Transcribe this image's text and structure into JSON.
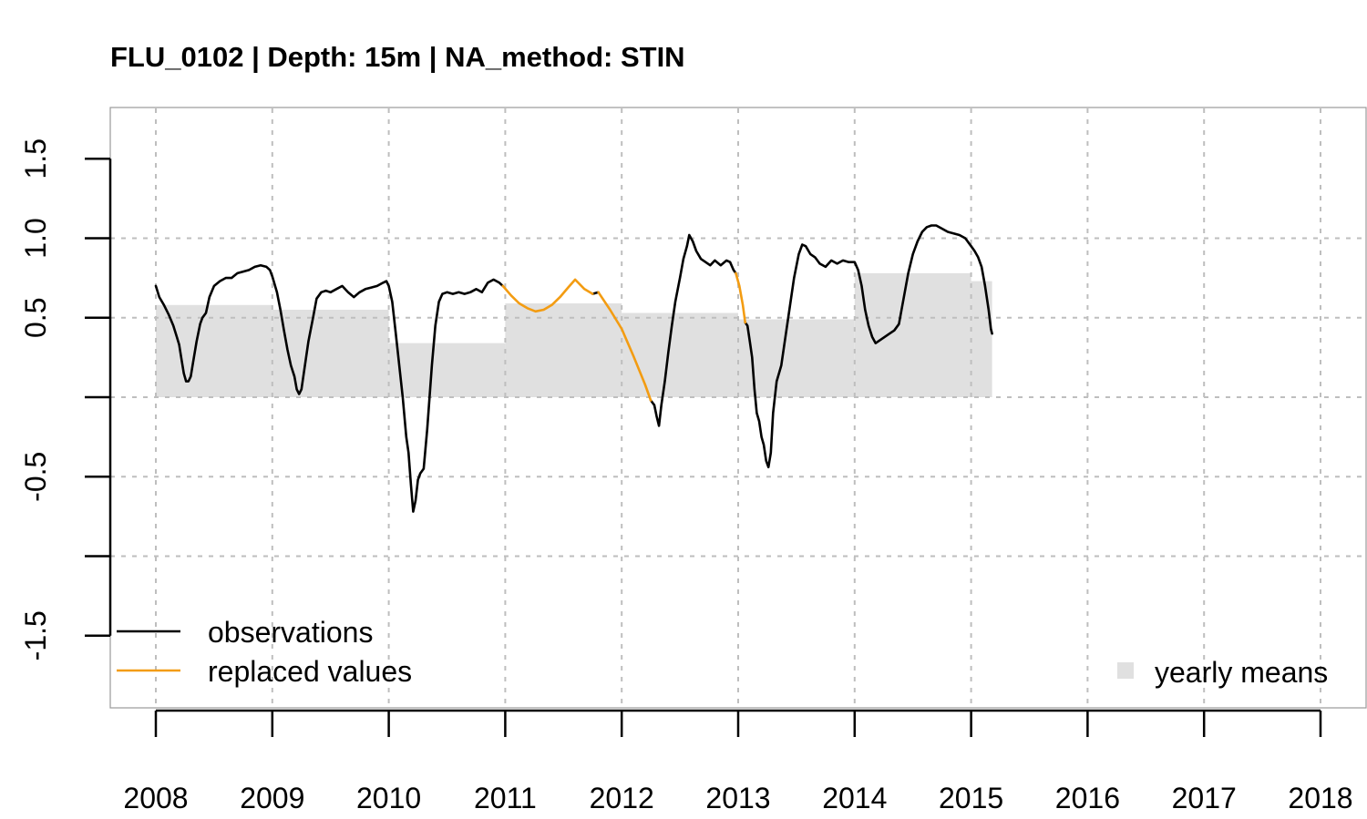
{
  "chart_data": {
    "type": "line",
    "title": "FLU_0102 | Depth: 15m | NA_method: STIN",
    "xlabel": "",
    "ylabel": "",
    "xlim": [
      2008,
      2018
    ],
    "ylim": [
      -1.8,
      1.8
    ],
    "x_ticks": [
      "2008",
      "2009",
      "2010",
      "2011",
      "2012",
      "2013",
      "2014",
      "2015",
      "2016",
      "2017",
      "2018"
    ],
    "y_ticks": [
      "-1.5",
      "-0.5",
      "0.5",
      "1.0",
      "1.5"
    ],
    "grid": true,
    "colors": {
      "observations": "#000000",
      "replaced": "#F39C12",
      "yearly_means": "#E0E0E0",
      "grid": "#BEBEBE"
    },
    "legend": {
      "position_lines": "bottom-left",
      "position_bars": "bottom-right",
      "entries": [
        {
          "label": "observations",
          "color": "#000000",
          "kind": "line"
        },
        {
          "label": "replaced values",
          "color": "#F39C12",
          "kind": "line"
        },
        {
          "label": "yearly means",
          "color": "#E0E0E0",
          "kind": "box"
        }
      ]
    },
    "yearly_means": [
      {
        "start": 2008.0,
        "end": 2009.0,
        "value": 0.58
      },
      {
        "start": 2009.0,
        "end": 2010.0,
        "value": 0.55
      },
      {
        "start": 2010.0,
        "end": 2011.0,
        "value": 0.34
      },
      {
        "start": 2011.0,
        "end": 2012.0,
        "value": 0.59
      },
      {
        "start": 2012.0,
        "end": 2013.0,
        "value": 0.53
      },
      {
        "start": 2013.0,
        "end": 2014.0,
        "value": 0.49
      },
      {
        "start": 2014.0,
        "end": 2015.0,
        "value": 0.78
      },
      {
        "start": 2015.0,
        "end": 2015.18,
        "value": 0.73
      }
    ],
    "series": [
      {
        "name": "observations",
        "segments": [
          [
            [
              2008.0,
              0.7
            ],
            [
              2008.03,
              0.63
            ],
            [
              2008.07,
              0.58
            ],
            [
              2008.11,
              0.52
            ],
            [
              2008.15,
              0.45
            ],
            [
              2008.18,
              0.38
            ],
            [
              2008.2,
              0.33
            ],
            [
              2008.22,
              0.24
            ],
            [
              2008.24,
              0.15
            ],
            [
              2008.26,
              0.1
            ],
            [
              2008.28,
              0.1
            ],
            [
              2008.3,
              0.13
            ],
            [
              2008.32,
              0.22
            ],
            [
              2008.35,
              0.35
            ],
            [
              2008.38,
              0.46
            ],
            [
              2008.4,
              0.5
            ],
            [
              2008.43,
              0.53
            ],
            [
              2008.46,
              0.63
            ],
            [
              2008.5,
              0.7
            ],
            [
              2008.55,
              0.73
            ],
            [
              2008.6,
              0.75
            ],
            [
              2008.65,
              0.75
            ],
            [
              2008.7,
              0.78
            ],
            [
              2008.75,
              0.79
            ],
            [
              2008.8,
              0.8
            ],
            [
              2008.85,
              0.82
            ],
            [
              2008.9,
              0.83
            ],
            [
              2008.95,
              0.82
            ],
            [
              2008.98,
              0.8
            ],
            [
              2009.0,
              0.76
            ],
            [
              2009.04,
              0.66
            ],
            [
              2009.07,
              0.55
            ],
            [
              2009.1,
              0.42
            ],
            [
              2009.13,
              0.3
            ],
            [
              2009.16,
              0.2
            ],
            [
              2009.19,
              0.13
            ],
            [
              2009.21,
              0.05
            ],
            [
              2009.23,
              0.02
            ],
            [
              2009.25,
              0.05
            ],
            [
              2009.28,
              0.2
            ],
            [
              2009.31,
              0.35
            ],
            [
              2009.35,
              0.5
            ],
            [
              2009.38,
              0.62
            ],
            [
              2009.42,
              0.66
            ],
            [
              2009.46,
              0.67
            ],
            [
              2009.5,
              0.66
            ],
            [
              2009.55,
              0.68
            ],
            [
              2009.6,
              0.7
            ],
            [
              2009.65,
              0.66
            ],
            [
              2009.7,
              0.63
            ],
            [
              2009.75,
              0.66
            ],
            [
              2009.8,
              0.68
            ],
            [
              2009.85,
              0.69
            ],
            [
              2009.9,
              0.7
            ],
            [
              2009.95,
              0.72
            ],
            [
              2009.98,
              0.73
            ],
            [
              2010.0,
              0.7
            ],
            [
              2010.03,
              0.6
            ],
            [
              2010.06,
              0.4
            ],
            [
              2010.09,
              0.2
            ],
            [
              2010.12,
              0.0
            ],
            [
              2010.15,
              -0.25
            ],
            [
              2010.17,
              -0.35
            ],
            [
              2010.19,
              -0.55
            ],
            [
              2010.21,
              -0.72
            ],
            [
              2010.23,
              -0.65
            ],
            [
              2010.25,
              -0.52
            ],
            [
              2010.27,
              -0.48
            ],
            [
              2010.3,
              -0.45
            ],
            [
              2010.33,
              -0.2
            ],
            [
              2010.37,
              0.2
            ],
            [
              2010.4,
              0.45
            ],
            [
              2010.43,
              0.6
            ],
            [
              2010.46,
              0.65
            ],
            [
              2010.5,
              0.66
            ],
            [
              2010.55,
              0.65
            ],
            [
              2010.6,
              0.66
            ],
            [
              2010.65,
              0.65
            ],
            [
              2010.7,
              0.66
            ],
            [
              2010.75,
              0.68
            ],
            [
              2010.8,
              0.66
            ],
            [
              2010.85,
              0.72
            ],
            [
              2010.9,
              0.74
            ],
            [
              2010.95,
              0.72
            ],
            [
              2010.98,
              0.7
            ]
          ],
          [
            [
              2011.75,
              0.65
            ],
            [
              2011.8,
              0.66
            ]
          ],
          [
            [
              2012.25,
              -0.02
            ],
            [
              2012.28,
              -0.05
            ],
            [
              2012.3,
              -0.12
            ],
            [
              2012.32,
              -0.18
            ],
            [
              2012.34,
              -0.05
            ],
            [
              2012.37,
              0.1
            ],
            [
              2012.4,
              0.28
            ],
            [
              2012.43,
              0.45
            ],
            [
              2012.46,
              0.6
            ],
            [
              2012.5,
              0.75
            ],
            [
              2012.53,
              0.87
            ],
            [
              2012.56,
              0.95
            ],
            [
              2012.58,
              1.02
            ],
            [
              2012.61,
              0.98
            ],
            [
              2012.64,
              0.92
            ],
            [
              2012.68,
              0.87
            ],
            [
              2012.72,
              0.85
            ],
            [
              2012.76,
              0.83
            ],
            [
              2012.8,
              0.86
            ],
            [
              2012.85,
              0.83
            ],
            [
              2012.9,
              0.86
            ],
            [
              2012.93,
              0.85
            ],
            [
              2012.96,
              0.8
            ],
            [
              2012.98,
              0.78
            ]
          ],
          [
            [
              2013.06,
              0.47
            ],
            [
              2013.08,
              0.45
            ],
            [
              2013.1,
              0.35
            ],
            [
              2013.12,
              0.25
            ],
            [
              2013.14,
              0.05
            ],
            [
              2013.16,
              -0.1
            ],
            [
              2013.18,
              -0.15
            ],
            [
              2013.2,
              -0.25
            ],
            [
              2013.22,
              -0.3
            ],
            [
              2013.24,
              -0.4
            ],
            [
              2013.26,
              -0.44
            ],
            [
              2013.28,
              -0.35
            ],
            [
              2013.3,
              -0.1
            ],
            [
              2013.33,
              0.1
            ],
            [
              2013.37,
              0.2
            ],
            [
              2013.4,
              0.35
            ],
            [
              2013.44,
              0.55
            ],
            [
              2013.48,
              0.75
            ],
            [
              2013.52,
              0.9
            ],
            [
              2013.55,
              0.96
            ],
            [
              2013.58,
              0.95
            ],
            [
              2013.62,
              0.9
            ],
            [
              2013.66,
              0.88
            ],
            [
              2013.7,
              0.84
            ],
            [
              2013.75,
              0.82
            ],
            [
              2013.8,
              0.86
            ],
            [
              2013.85,
              0.84
            ],
            [
              2013.9,
              0.86
            ],
            [
              2013.95,
              0.85
            ],
            [
              2014.0,
              0.85
            ],
            [
              2014.03,
              0.8
            ],
            [
              2014.06,
              0.7
            ],
            [
              2014.09,
              0.55
            ],
            [
              2014.12,
              0.45
            ],
            [
              2014.15,
              0.38
            ],
            [
              2014.18,
              0.34
            ],
            [
              2014.22,
              0.36
            ],
            [
              2014.26,
              0.38
            ],
            [
              2014.3,
              0.4
            ],
            [
              2014.34,
              0.42
            ],
            [
              2014.38,
              0.46
            ],
            [
              2014.42,
              0.62
            ],
            [
              2014.46,
              0.78
            ],
            [
              2014.5,
              0.9
            ],
            [
              2014.54,
              0.98
            ],
            [
              2014.58,
              1.04
            ],
            [
              2014.62,
              1.07
            ],
            [
              2014.66,
              1.08
            ],
            [
              2014.7,
              1.08
            ],
            [
              2014.75,
              1.06
            ],
            [
              2014.8,
              1.04
            ],
            [
              2014.85,
              1.03
            ],
            [
              2014.9,
              1.02
            ],
            [
              2014.95,
              1.0
            ],
            [
              2015.0,
              0.95
            ],
            [
              2015.03,
              0.92
            ],
            [
              2015.06,
              0.88
            ],
            [
              2015.09,
              0.82
            ],
            [
              2015.12,
              0.7
            ],
            [
              2015.15,
              0.55
            ],
            [
              2015.17,
              0.43
            ],
            [
              2015.18,
              0.4
            ]
          ]
        ]
      },
      {
        "name": "replaced values",
        "segments": [
          [
            [
              2010.98,
              0.7
            ],
            [
              2011.05,
              0.64
            ],
            [
              2011.12,
              0.59
            ],
            [
              2011.19,
              0.56
            ],
            [
              2011.26,
              0.54
            ],
            [
              2011.33,
              0.55
            ],
            [
              2011.4,
              0.58
            ],
            [
              2011.47,
              0.63
            ],
            [
              2011.54,
              0.69
            ],
            [
              2011.6,
              0.74
            ],
            [
              2011.68,
              0.68
            ],
            [
              2011.75,
              0.65
            ]
          ],
          [
            [
              2011.8,
              0.66
            ],
            [
              2011.9,
              0.55
            ],
            [
              2012.0,
              0.43
            ],
            [
              2012.1,
              0.26
            ],
            [
              2012.2,
              0.08
            ],
            [
              2012.25,
              -0.02
            ]
          ],
          [
            [
              2012.98,
              0.78
            ],
            [
              2013.01,
              0.7
            ],
            [
              2013.04,
              0.58
            ],
            [
              2013.06,
              0.47
            ]
          ]
        ]
      }
    ]
  }
}
